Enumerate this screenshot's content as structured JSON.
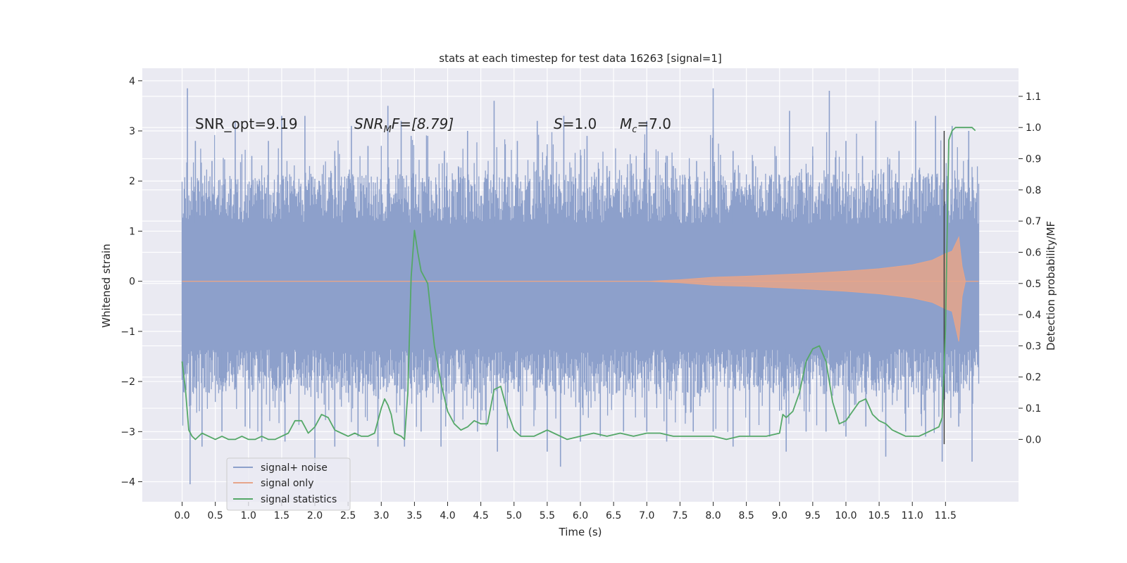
{
  "chart_data": {
    "type": "line",
    "title": "stats at each timestep for test data 16263 [signal=1]",
    "xlabel": "Time (s)",
    "ylabel_left": "Whitened strain",
    "ylabel_right": "Detection probability/MF",
    "xlim": [
      -0.6,
      12.6
    ],
    "ylim_left": [
      -4.4,
      4.25
    ],
    "ylim_right": [
      -0.2,
      1.19
    ],
    "x_ticks": [
      0.0,
      0.5,
      1.0,
      1.5,
      2.0,
      2.5,
      3.0,
      3.5,
      4.0,
      4.5,
      5.0,
      5.5,
      6.0,
      6.5,
      7.0,
      7.5,
      8.0,
      8.5,
      9.0,
      9.5,
      10.0,
      10.5,
      11.0,
      11.5
    ],
    "x_tick_labels": [
      "0.0",
      "0.5",
      "1.0",
      "1.5",
      "2.0",
      "2.5",
      "3.0",
      "3.5",
      "4.0",
      "4.5",
      "5.0",
      "5.5",
      "6.0",
      "6.5",
      "7.0",
      "7.5",
      "8.0",
      "8.5",
      "9.0",
      "9.5",
      "10.0",
      "10.5",
      "11.0",
      "11.5"
    ],
    "y_left_ticks": [
      -4,
      -3,
      -2,
      -1,
      0,
      1,
      2,
      3,
      4
    ],
    "y_left_tick_labels": [
      "−4",
      "−3",
      "−2",
      "−1",
      "0",
      "1",
      "2",
      "3",
      "4"
    ],
    "y_right_ticks": [
      0.0,
      0.1,
      0.2,
      0.3,
      0.4,
      0.5,
      0.6,
      0.7,
      0.8,
      0.9,
      1.0,
      1.1
    ],
    "y_right_tick_labels": [
      "0.0",
      "0.1",
      "0.2",
      "0.3",
      "0.4",
      "0.5",
      "0.6",
      "0.7",
      "0.8",
      "0.9",
      "1.0",
      "1.1"
    ],
    "grid": true,
    "annotations": {
      "snr_opt": "SNR_opt=9.19",
      "snr_mf_sym": "SNR",
      "snr_mf_sub": "M",
      "snr_mf_rest": "F=[8.79]",
      "s_sym": "S",
      "s_val": "=1.0",
      "mc_sym": "M",
      "mc_sub": "c",
      "mc_val": "=7.0"
    },
    "legend": {
      "position": "lower-left",
      "entries": [
        "signal+ noise",
        "signal only",
        "signal statistics"
      ]
    },
    "series": [
      {
        "name": "signal+ noise",
        "color": "#8da0cb",
        "t_range": [
          0.0,
          12.0
        ],
        "band": [
          -1.35,
          1.15
        ],
        "upper_spikes": [
          [
            0.08,
            3.85
          ],
          [
            0.2,
            2.8
          ],
          [
            0.45,
            2.4
          ],
          [
            0.8,
            3.2
          ],
          [
            1.05,
            2.5
          ],
          [
            1.3,
            2.8
          ],
          [
            1.5,
            3.3
          ],
          [
            1.85,
            3.3
          ],
          [
            2.3,
            2.6
          ],
          [
            2.55,
            3.1
          ],
          [
            2.8,
            2.7
          ],
          [
            3.1,
            3.5
          ],
          [
            3.3,
            3.2
          ],
          [
            3.45,
            2.9
          ],
          [
            3.7,
            2.9
          ],
          [
            3.95,
            2.6
          ],
          [
            4.3,
            3.0
          ],
          [
            4.7,
            3.6
          ],
          [
            5.05,
            2.8
          ],
          [
            5.35,
            3.2
          ],
          [
            5.75,
            3.3
          ],
          [
            6.1,
            2.9
          ],
          [
            6.4,
            2.3
          ],
          [
            6.75,
            2.2
          ],
          [
            7.0,
            3.2
          ],
          [
            7.4,
            2.3
          ],
          [
            7.75,
            2.4
          ],
          [
            8.0,
            3.85
          ],
          [
            8.3,
            2.6
          ],
          [
            8.6,
            2.4
          ],
          [
            8.95,
            2.5
          ],
          [
            9.15,
            3.4
          ],
          [
            9.5,
            2.5
          ],
          [
            9.75,
            3.8
          ],
          [
            10.0,
            2.8
          ],
          [
            10.25,
            2.5
          ],
          [
            10.45,
            3.2
          ],
          [
            10.8,
            2.6
          ],
          [
            11.05,
            3.2
          ],
          [
            11.35,
            3.3
          ],
          [
            11.6,
            3.1
          ],
          [
            11.85,
            3.0
          ]
        ],
        "lower_spikes": [
          [
            0.12,
            -4.05
          ],
          [
            0.3,
            -3.3
          ],
          [
            0.6,
            -3.0
          ],
          [
            0.95,
            -2.9
          ],
          [
            1.2,
            -3.2
          ],
          [
            1.55,
            -3.2
          ],
          [
            2.0,
            -3.7
          ],
          [
            2.3,
            -3.3
          ],
          [
            2.65,
            -3.1
          ],
          [
            2.95,
            -3.3
          ],
          [
            3.35,
            -3.3
          ],
          [
            3.6,
            -3.0
          ],
          [
            3.9,
            -3.3
          ],
          [
            4.1,
            -2.8
          ],
          [
            4.45,
            -3.0
          ],
          [
            4.75,
            -3.4
          ],
          [
            5.1,
            -3.1
          ],
          [
            5.5,
            -3.4
          ],
          [
            5.7,
            -3.7
          ],
          [
            6.0,
            -3.2
          ],
          [
            6.3,
            -3.1
          ],
          [
            6.65,
            -3.0
          ],
          [
            7.0,
            -3.0
          ],
          [
            7.3,
            -3.2
          ],
          [
            7.7,
            -3.0
          ],
          [
            8.0,
            -3.0
          ],
          [
            8.3,
            -3.3
          ],
          [
            8.55,
            -3.1
          ],
          [
            8.85,
            -3.1
          ],
          [
            9.1,
            -3.4
          ],
          [
            9.4,
            -3.0
          ],
          [
            9.7,
            -3.0
          ],
          [
            10.0,
            -3.1
          ],
          [
            10.3,
            -2.9
          ],
          [
            10.6,
            -3.5
          ],
          [
            10.9,
            -3.0
          ],
          [
            11.2,
            -3.1
          ],
          [
            11.45,
            -3.6
          ],
          [
            11.7,
            -2.9
          ],
          [
            11.9,
            -3.6
          ]
        ]
      },
      {
        "name": "signal only",
        "color": "#e6a58a",
        "envelope": [
          [
            0.0,
            0.0
          ],
          [
            7.0,
            0.0
          ],
          [
            7.5,
            0.03
          ],
          [
            8.0,
            0.08
          ],
          [
            8.5,
            0.1
          ],
          [
            9.0,
            0.13
          ],
          [
            9.5,
            0.16
          ],
          [
            10.0,
            0.2
          ],
          [
            10.5,
            0.25
          ],
          [
            11.0,
            0.33
          ],
          [
            11.3,
            0.42
          ],
          [
            11.5,
            0.55
          ],
          [
            11.6,
            0.6
          ],
          [
            11.7,
            0.88
          ],
          [
            11.75,
            0.3
          ],
          [
            11.8,
            0.0
          ],
          [
            12.0,
            0.0
          ]
        ],
        "envelope_lower": [
          [
            0.0,
            0.0
          ],
          [
            7.0,
            0.0
          ],
          [
            7.5,
            -0.03
          ],
          [
            8.0,
            -0.08
          ],
          [
            8.5,
            -0.1
          ],
          [
            9.0,
            -0.13
          ],
          [
            9.5,
            -0.16
          ],
          [
            10.0,
            -0.2
          ],
          [
            10.5,
            -0.25
          ],
          [
            11.0,
            -0.33
          ],
          [
            11.3,
            -0.42
          ],
          [
            11.5,
            -0.55
          ],
          [
            11.6,
            -0.6
          ],
          [
            11.7,
            -1.2
          ],
          [
            11.75,
            -0.3
          ],
          [
            11.8,
            0.0
          ],
          [
            12.0,
            0.0
          ]
        ]
      },
      {
        "name": "signal statistics",
        "color": "#55a868",
        "axis": "right",
        "x": [
          0.0,
          0.05,
          0.1,
          0.15,
          0.2,
          0.3,
          0.4,
          0.5,
          0.6,
          0.7,
          0.8,
          0.9,
          1.0,
          1.1,
          1.2,
          1.3,
          1.4,
          1.5,
          1.6,
          1.7,
          1.8,
          1.85,
          1.9,
          2.0,
          2.1,
          2.2,
          2.3,
          2.4,
          2.5,
          2.6,
          2.7,
          2.8,
          2.9,
          3.0,
          3.05,
          3.1,
          3.15,
          3.2,
          3.3,
          3.35,
          3.4,
          3.45,
          3.5,
          3.55,
          3.6,
          3.7,
          3.8,
          3.9,
          4.0,
          4.1,
          4.2,
          4.3,
          4.4,
          4.5,
          4.6,
          4.7,
          4.8,
          4.9,
          5.0,
          5.1,
          5.2,
          5.3,
          5.4,
          5.5,
          5.6,
          5.8,
          6.0,
          6.2,
          6.4,
          6.6,
          6.8,
          7.0,
          7.2,
          7.4,
          7.6,
          7.8,
          8.0,
          8.2,
          8.4,
          8.6,
          8.8,
          9.0,
          9.05,
          9.1,
          9.2,
          9.3,
          9.4,
          9.5,
          9.6,
          9.7,
          9.8,
          9.9,
          10.0,
          10.1,
          10.2,
          10.3,
          10.4,
          10.5,
          10.6,
          10.7,
          10.8,
          10.9,
          11.0,
          11.1,
          11.2,
          11.3,
          11.4,
          11.45,
          11.5,
          11.55,
          11.6,
          11.65,
          11.7,
          11.8,
          11.9,
          11.95
        ],
        "y": [
          0.25,
          0.16,
          0.03,
          0.01,
          0.0,
          0.02,
          0.01,
          0.0,
          0.01,
          0.0,
          0.0,
          0.01,
          0.0,
          0.0,
          0.01,
          0.0,
          0.0,
          0.01,
          0.02,
          0.06,
          0.06,
          0.04,
          0.02,
          0.04,
          0.08,
          0.07,
          0.03,
          0.02,
          0.01,
          0.02,
          0.01,
          0.01,
          0.02,
          0.1,
          0.13,
          0.11,
          0.08,
          0.02,
          0.01,
          0.0,
          0.15,
          0.52,
          0.67,
          0.6,
          0.54,
          0.5,
          0.3,
          0.18,
          0.09,
          0.05,
          0.03,
          0.04,
          0.06,
          0.05,
          0.05,
          0.16,
          0.17,
          0.09,
          0.03,
          0.01,
          0.01,
          0.01,
          0.02,
          0.03,
          0.02,
          0.0,
          0.01,
          0.02,
          0.01,
          0.02,
          0.01,
          0.02,
          0.02,
          0.01,
          0.01,
          0.01,
          0.01,
          0.0,
          0.01,
          0.01,
          0.01,
          0.02,
          0.08,
          0.07,
          0.09,
          0.15,
          0.25,
          0.29,
          0.3,
          0.25,
          0.12,
          0.05,
          0.06,
          0.09,
          0.12,
          0.13,
          0.08,
          0.06,
          0.05,
          0.03,
          0.02,
          0.01,
          0.01,
          0.01,
          0.02,
          0.03,
          0.04,
          0.07,
          0.35,
          0.96,
          0.99,
          1.0,
          1.0,
          1.0,
          1.0,
          0.99
        ]
      }
    ]
  }
}
